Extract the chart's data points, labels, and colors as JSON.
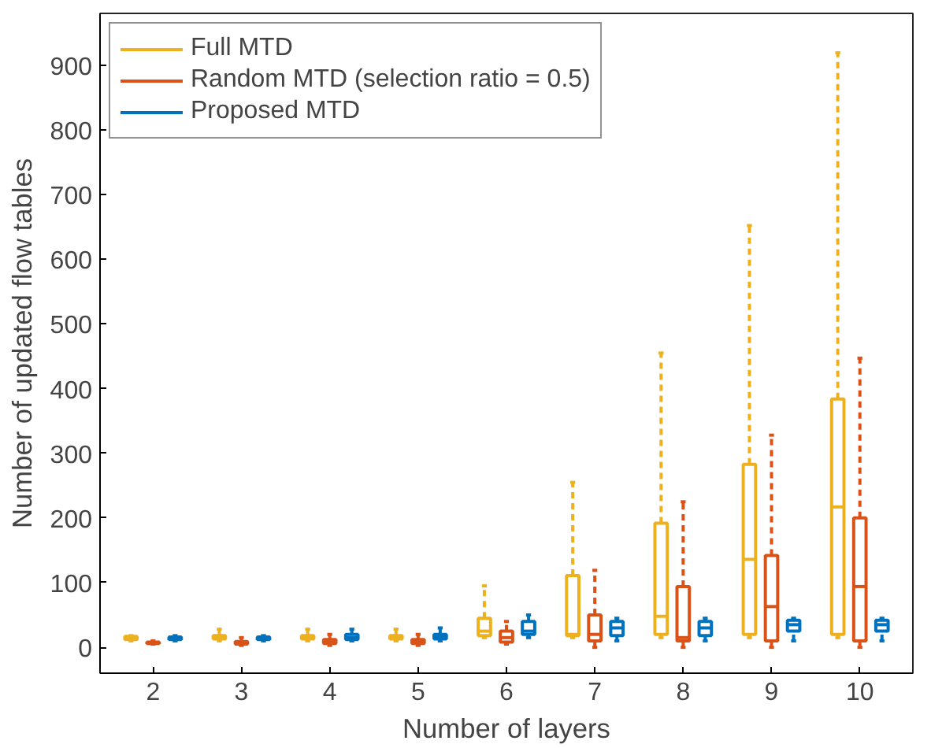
{
  "chart_data": {
    "type": "box",
    "xlabel": "Number of layers",
    "ylabel": "Number of updated flow tables",
    "categories": [
      "2",
      "3",
      "4",
      "5",
      "6",
      "7",
      "8",
      "9",
      "10"
    ],
    "ylim": [
      -40,
      980
    ],
    "yticks": [
      0,
      100,
      200,
      300,
      400,
      500,
      600,
      700,
      800,
      900
    ],
    "legend": "top left",
    "grid": false,
    "line_style": "dashed",
    "series": [
      {
        "name": "Full MTD",
        "color": "#edb120",
        "boxes": [
          {
            "low": 10,
            "q1": 12,
            "median": 15,
            "q3": 17,
            "high": 18
          },
          {
            "low": 10,
            "q1": 13,
            "median": 16,
            "q3": 18,
            "high": 28
          },
          {
            "low": 10,
            "q1": 13,
            "median": 16,
            "q3": 18,
            "high": 28
          },
          {
            "low": 10,
            "q1": 13,
            "median": 16,
            "q3": 18,
            "high": 28
          },
          {
            "low": 15,
            "q1": 18,
            "median": 25,
            "q3": 45,
            "high": 95
          },
          {
            "low": 15,
            "q1": 18,
            "median": 20,
            "q3": 111,
            "high": 255
          },
          {
            "low": 15,
            "q1": 20,
            "median": 48,
            "q3": 192,
            "high": 455
          },
          {
            "low": 15,
            "q1": 20,
            "median": 136,
            "q3": 283,
            "high": 652
          },
          {
            "low": 15,
            "q1": 20,
            "median": 217,
            "q3": 384,
            "high": 919
          }
        ]
      },
      {
        "name": "Random MTD (selection ratio = 0.5)",
        "color": "#d95319",
        "boxes": [
          {
            "low": 5,
            "q1": 6,
            "median": 7,
            "q3": 8,
            "high": 10
          },
          {
            "low": 3,
            "q1": 5,
            "median": 7,
            "q3": 9,
            "high": 15
          },
          {
            "low": 3,
            "q1": 6,
            "median": 8,
            "q3": 12,
            "high": 20
          },
          {
            "low": 3,
            "q1": 6,
            "median": 8,
            "q3": 12,
            "high": 20
          },
          {
            "low": 5,
            "q1": 8,
            "median": 15,
            "q3": 25,
            "high": 40
          },
          {
            "low": 0,
            "q1": 10,
            "median": 20,
            "q3": 50,
            "high": 119
          },
          {
            "low": 0,
            "q1": 10,
            "median": 15,
            "q3": 94,
            "high": 225
          },
          {
            "low": 0,
            "q1": 10,
            "median": 63,
            "q3": 142,
            "high": 328
          },
          {
            "low": 0,
            "q1": 10,
            "median": 94,
            "q3": 200,
            "high": 447
          }
        ]
      },
      {
        "name": "Proposed MTD",
        "color": "#0072bd",
        "boxes": [
          {
            "low": 10,
            "q1": 12,
            "median": 14,
            "q3": 16,
            "high": 18
          },
          {
            "low": 10,
            "q1": 12,
            "median": 14,
            "q3": 16,
            "high": 18
          },
          {
            "low": 10,
            "q1": 12,
            "median": 15,
            "q3": 20,
            "high": 28
          },
          {
            "low": 10,
            "q1": 13,
            "median": 16,
            "q3": 20,
            "high": 30
          },
          {
            "low": 15,
            "q1": 20,
            "median": 25,
            "q3": 40,
            "high": 50
          },
          {
            "low": 10,
            "q1": 18,
            "median": 30,
            "q3": 40,
            "high": 45
          },
          {
            "low": 10,
            "q1": 18,
            "median": 30,
            "q3": 40,
            "high": 45
          },
          {
            "low": 10,
            "q1": 25,
            "median": 35,
            "q3": 42,
            "high": 45
          },
          {
            "low": 10,
            "q1": 25,
            "median": 35,
            "q3": 42,
            "high": 45
          }
        ]
      }
    ]
  }
}
